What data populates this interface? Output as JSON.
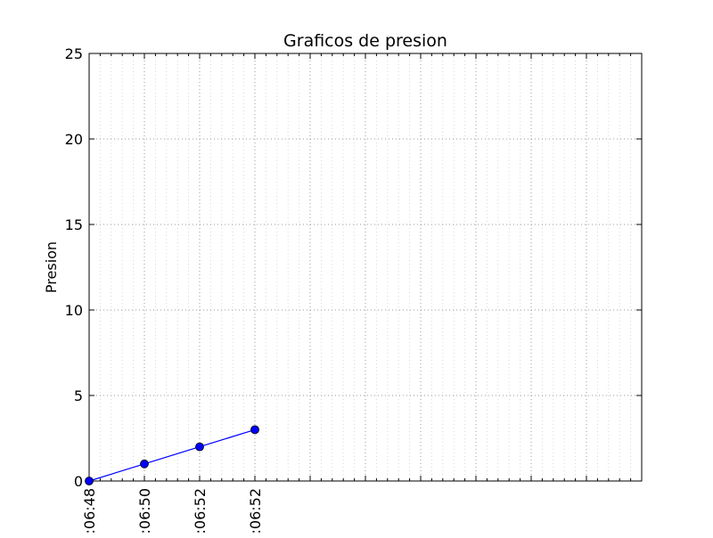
{
  "chart_data": {
    "type": "line",
    "title": "Graficos de presion",
    "xlabel": "",
    "ylabel": "Presion",
    "x_tick_labels": [
      ":06:48",
      ":06:50",
      ":06:52",
      ":06:52"
    ],
    "y_ticks": [
      0,
      5,
      10,
      15,
      20,
      25
    ],
    "ylim": [
      0,
      25
    ],
    "x_slots": 10,
    "grid": true,
    "legend": "none",
    "series": [
      {
        "values": [
          0,
          1,
          2,
          3
        ],
        "color": "#0000ff"
      }
    ]
  }
}
